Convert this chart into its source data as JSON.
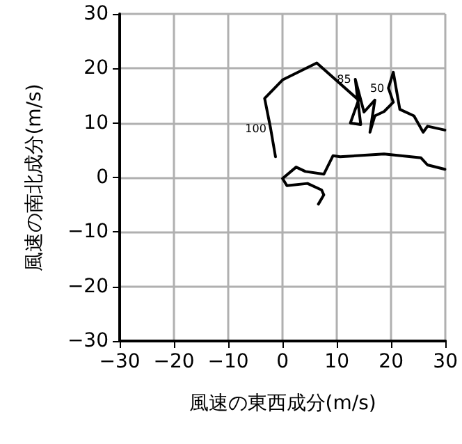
{
  "chart_data": {
    "type": "line",
    "xlabel": "風速の東西成分(m/s)",
    "ylabel": "風速の南北成分(m/s)",
    "series": [
      {
        "color": "#000000",
        "x": [
          -1.3,
          -2.2,
          -3.3,
          0,
          6.3,
          14,
          12.5,
          14.4,
          13.4,
          15,
          17,
          16.1,
          17,
          18.7,
          20.4,
          19.5,
          20.4,
          21.6,
          24.2,
          25.9,
          26.7,
          29.9
        ],
        "values": [
          3.8,
          9,
          14.5,
          17.9,
          21,
          14.2,
          10,
          9.7,
          18,
          12,
          14.2,
          8.3,
          11.3,
          12.1,
          13.8,
          16.4,
          19.3,
          12.5,
          11.3,
          8.3,
          9.4,
          8.7
        ]
      },
      {
        "color": "#000000",
        "x": [
          29.9,
          26.7,
          25.5,
          18.7,
          10.6,
          9.3,
          7.6,
          4.2,
          2.5,
          0,
          0.8,
          4.6,
          7.2,
          7.6,
          6.6
        ],
        "values": [
          1.5,
          2.3,
          3.6,
          4.3,
          3.8,
          4,
          0.6,
          1.1,
          1.9,
          -0.2,
          -1.5,
          -1.1,
          -2.3,
          -3.2,
          -4.9
        ]
      }
    ],
    "annotations": [
      {
        "text": "100",
        "x": -2.2,
        "y": 9
      },
      {
        "text": "85",
        "x": 13.4,
        "y": 18
      },
      {
        "text": "50",
        "x": 19.5,
        "y": 16.4
      }
    ],
    "xlim": [
      -30,
      30
    ],
    "xticks": [
      -30,
      -20,
      -10,
      0,
      10,
      20,
      30
    ],
    "ylim": [
      -30,
      30
    ],
    "yticks": [
      -30,
      -20,
      -10,
      0,
      10,
      20,
      30
    ],
    "grid": true,
    "marker": "none",
    "line_style": "solid"
  }
}
